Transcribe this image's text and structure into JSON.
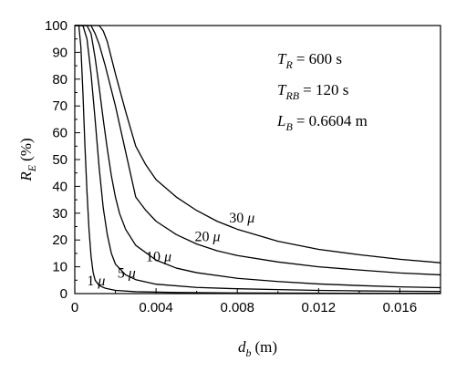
{
  "chart_data": {
    "type": "line",
    "xlabel": {
      "main": "d",
      "sub": "b",
      "unit": "(m)"
    },
    "ylabel": {
      "main": "R",
      "sub": "E",
      "unit": "(%)"
    },
    "xlim": [
      0,
      0.018
    ],
    "ylim": [
      0,
      100
    ],
    "xticks": [
      0,
      0.004,
      0.008,
      0.012,
      0.016
    ],
    "xtick_labels": [
      "0",
      "0.004",
      "0.008",
      "0.012",
      "0.016"
    ],
    "yticks": [
      0,
      10,
      20,
      30,
      40,
      50,
      60,
      70,
      80,
      90,
      100
    ],
    "ytick_labels": [
      "0",
      "10",
      "20",
      "30",
      "40",
      "50",
      "60",
      "70",
      "80",
      "90",
      "100"
    ],
    "grid": false,
    "parameters": [
      {
        "sym": "T",
        "sub": "R",
        "value": "= 600 s"
      },
      {
        "sym": "T",
        "sub": "RB",
        "value": "= 120 s"
      },
      {
        "sym": "L",
        "sub": "B",
        "value": "= 0.6604 m"
      }
    ],
    "series": [
      {
        "name": "1 μ",
        "points": [
          [
            0.0,
            100
          ],
          [
            0.0002,
            100
          ],
          [
            0.0003,
            92
          ],
          [
            0.0004,
            75
          ],
          [
            0.0005,
            55
          ],
          [
            0.0006,
            38
          ],
          [
            0.0007,
            24
          ],
          [
            0.0008,
            14
          ],
          [
            0.0009,
            8
          ],
          [
            0.001,
            5
          ],
          [
            0.0012,
            3
          ],
          [
            0.0015,
            2
          ],
          [
            0.002,
            1.2
          ],
          [
            0.003,
            0.7
          ],
          [
            0.005,
            0.4
          ],
          [
            0.008,
            0.25
          ],
          [
            0.012,
            0.15
          ],
          [
            0.018,
            0.1
          ]
        ]
      },
      {
        "name": "5 μ",
        "points": [
          [
            0.0,
            100
          ],
          [
            0.0004,
            100
          ],
          [
            0.0006,
            95
          ],
          [
            0.0008,
            82
          ],
          [
            0.001,
            65
          ],
          [
            0.0012,
            47
          ],
          [
            0.0014,
            32
          ],
          [
            0.0016,
            22
          ],
          [
            0.0018,
            15
          ],
          [
            0.002,
            11
          ],
          [
            0.0025,
            7
          ],
          [
            0.003,
            5.2
          ],
          [
            0.004,
            3.5
          ],
          [
            0.006,
            2.3
          ],
          [
            0.008,
            1.8
          ],
          [
            0.01,
            1.5
          ],
          [
            0.012,
            1.2
          ],
          [
            0.014,
            1.0
          ],
          [
            0.016,
            0.9
          ],
          [
            0.018,
            0.8
          ]
        ]
      },
      {
        "name": "10 μ",
        "points": [
          [
            0.0,
            100
          ],
          [
            0.0006,
            100
          ],
          [
            0.0008,
            97
          ],
          [
            0.001,
            88
          ],
          [
            0.0012,
            77
          ],
          [
            0.0014,
            65
          ],
          [
            0.0016,
            54
          ],
          [
            0.0018,
            44
          ],
          [
            0.002,
            36
          ],
          [
            0.0022,
            30
          ],
          [
            0.0025,
            24
          ],
          [
            0.003,
            18
          ],
          [
            0.004,
            12.5
          ],
          [
            0.005,
            9.5
          ],
          [
            0.006,
            7.8
          ],
          [
            0.008,
            5.7
          ],
          [
            0.01,
            4.5
          ],
          [
            0.012,
            3.6
          ],
          [
            0.014,
            3.0
          ],
          [
            0.016,
            2.5
          ],
          [
            0.018,
            2.2
          ]
        ]
      },
      {
        "name": "20 μ",
        "points": [
          [
            0.0,
            100
          ],
          [
            0.0008,
            100
          ],
          [
            0.001,
            97
          ],
          [
            0.0012,
            93
          ],
          [
            0.0015,
            85
          ],
          [
            0.002,
            70
          ],
          [
            0.0025,
            53
          ],
          [
            0.003,
            36
          ],
          [
            0.0035,
            31
          ],
          [
            0.004,
            27
          ],
          [
            0.005,
            22
          ],
          [
            0.006,
            18.5
          ],
          [
            0.007,
            16
          ],
          [
            0.008,
            14.2
          ],
          [
            0.01,
            11.8
          ],
          [
            0.012,
            10
          ],
          [
            0.014,
            8.8
          ],
          [
            0.016,
            7.7
          ],
          [
            0.018,
            7
          ]
        ]
      },
      {
        "name": "30 μ",
        "points": [
          [
            0.0,
            100
          ],
          [
            0.0012,
            100
          ],
          [
            0.0014,
            98
          ],
          [
            0.0016,
            94
          ],
          [
            0.0018,
            88
          ],
          [
            0.002,
            82
          ],
          [
            0.0025,
            68
          ],
          [
            0.003,
            55
          ],
          [
            0.0035,
            48
          ],
          [
            0.004,
            42.5
          ],
          [
            0.005,
            36
          ],
          [
            0.006,
            31
          ],
          [
            0.007,
            27
          ],
          [
            0.008,
            24
          ],
          [
            0.01,
            19.5
          ],
          [
            0.012,
            16.5
          ],
          [
            0.014,
            14.5
          ],
          [
            0.016,
            12.8
          ],
          [
            0.018,
            11.5
          ]
        ]
      }
    ],
    "series_labels": [
      {
        "text": "1",
        "at": [
          0.0006,
          3
        ]
      },
      {
        "text": "5",
        "at": [
          0.0021,
          6
        ]
      },
      {
        "text": "10",
        "at": [
          0.0035,
          12
        ]
      },
      {
        "text": "20",
        "at": [
          0.0059,
          19.5
        ]
      },
      {
        "text": "30",
        "at": [
          0.0076,
          26.5
        ]
      }
    ],
    "series_label_unit": "μ"
  }
}
